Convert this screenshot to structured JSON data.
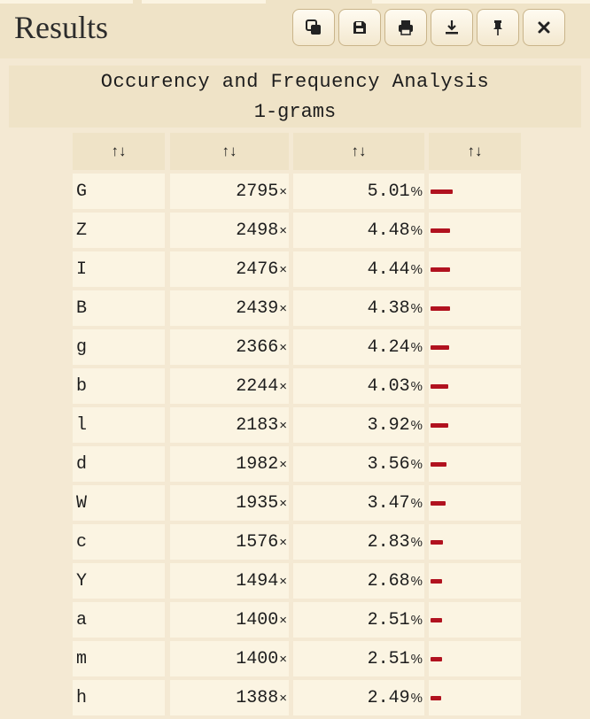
{
  "window": {
    "title": "Results"
  },
  "toolbar": {
    "buttons": [
      {
        "name": "copy-icon"
      },
      {
        "name": "save-icon"
      },
      {
        "name": "print-icon"
      },
      {
        "name": "download-icon"
      },
      {
        "name": "pin-icon"
      },
      {
        "name": "close-icon"
      }
    ]
  },
  "analysis": {
    "title": "Occurency and Frequency Analysis",
    "subtitle": "1-grams",
    "sort_glyph": "↑↓",
    "count_suffix": "×",
    "percent_suffix": "%",
    "accent_color": "#b1121f",
    "rows": [
      {
        "char": "G",
        "count": "2795",
        "freq": "5.01",
        "fraction": 5.01
      },
      {
        "char": "Z",
        "count": "2498",
        "freq": "4.48",
        "fraction": 4.48
      },
      {
        "char": "I",
        "count": "2476",
        "freq": "4.44",
        "fraction": 4.44
      },
      {
        "char": "B",
        "count": "2439",
        "freq": "4.38",
        "fraction": 4.38
      },
      {
        "char": "g",
        "count": "2366",
        "freq": "4.24",
        "fraction": 4.24
      },
      {
        "char": "b",
        "count": "2244",
        "freq": "4.03",
        "fraction": 4.03
      },
      {
        "char": "l",
        "count": "2183",
        "freq": "3.92",
        "fraction": 3.92
      },
      {
        "char": "d",
        "count": "1982",
        "freq": "3.56",
        "fraction": 3.56
      },
      {
        "char": "W",
        "count": "1935",
        "freq": "3.47",
        "fraction": 3.47
      },
      {
        "char": "c",
        "count": "1576",
        "freq": "2.83",
        "fraction": 2.83
      },
      {
        "char": "Y",
        "count": "1494",
        "freq": "2.68",
        "fraction": 2.68
      },
      {
        "char": "a",
        "count": "1400",
        "freq": "2.51",
        "fraction": 2.51
      },
      {
        "char": "m",
        "count": "1400",
        "freq": "2.51",
        "fraction": 2.51
      },
      {
        "char": "h",
        "count": "1388",
        "freq": "2.49",
        "fraction": 2.49
      }
    ]
  }
}
